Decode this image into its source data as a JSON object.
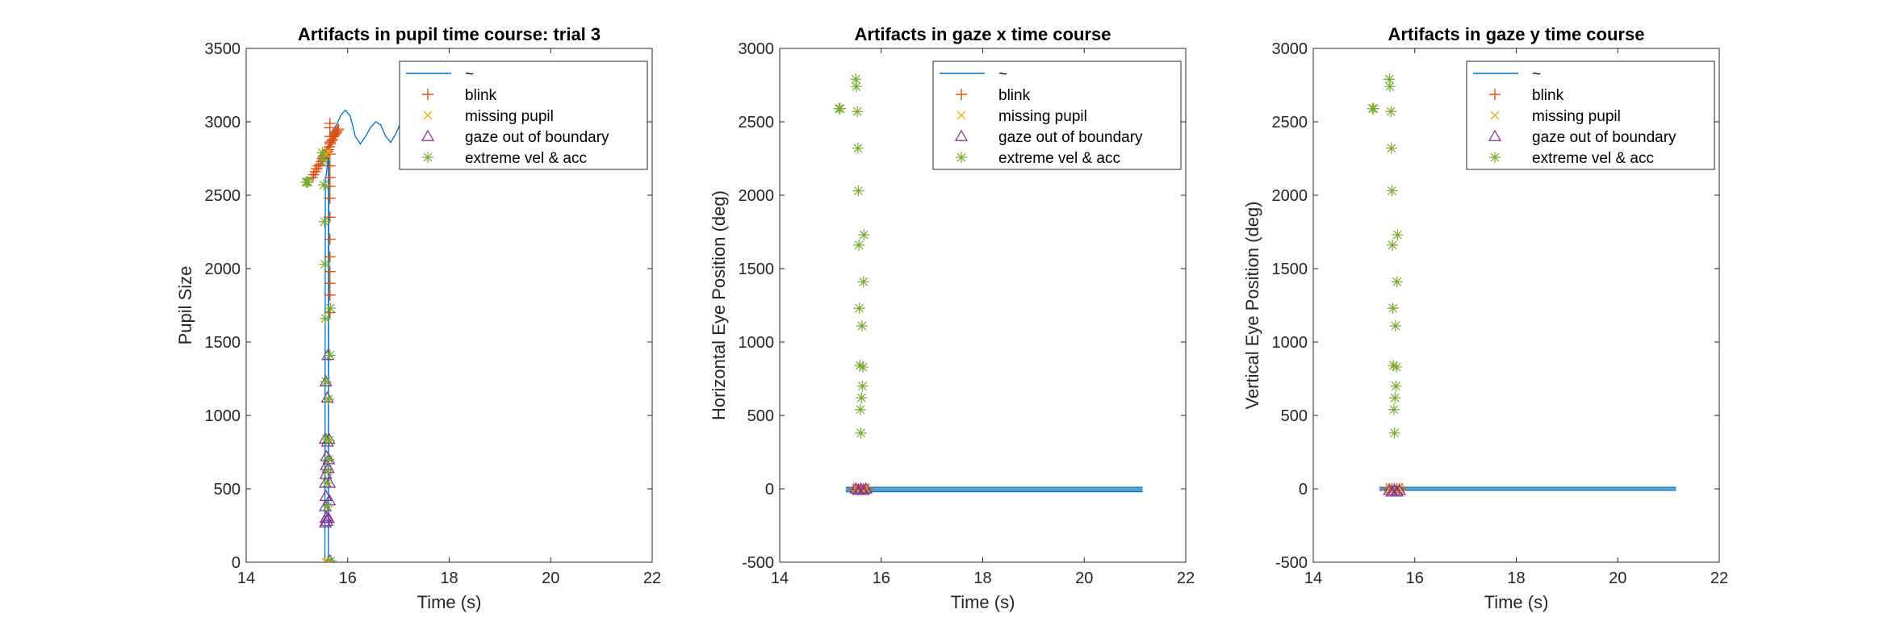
{
  "figure": {
    "colors": {
      "line": "#0072BD",
      "blink": "#D95319",
      "missing": "#EDB120",
      "boundary": "#7E2F8E",
      "extreme": "#77AC30"
    }
  },
  "legend_entries": [
    "~",
    "blink",
    "missing pupil",
    "gaze out of boundary",
    "extreme vel & acc"
  ],
  "chart_data": [
    {
      "type": "line",
      "title": "Artifacts in pupil time course: trial 3",
      "xlabel": "Time (s)",
      "ylabel": "Pupil Size",
      "xlim": [
        14,
        22
      ],
      "ylim": [
        0,
        3500
      ],
      "xticks": [
        14,
        16,
        18,
        20,
        22
      ],
      "yticks": [
        0,
        500,
        1000,
        1500,
        2000,
        2500,
        3000,
        3500
      ],
      "legend_position": "top-right",
      "grid": false,
      "series": [
        {
          "name": "~",
          "kind": "line",
          "x": [
            15.55,
            15.56,
            15.58,
            15.6,
            15.61,
            15.62,
            15.62,
            15.63,
            15.64,
            15.65,
            15.68,
            15.72,
            15.78,
            15.86,
            15.95,
            16.05,
            16.15,
            16.25,
            16.35,
            16.45,
            16.55,
            16.65,
            16.75,
            16.85,
            16.95,
            17.05,
            17.15,
            17.25,
            17.35,
            17.45,
            17.55,
            17.65,
            17.75,
            17.85
          ],
          "y": [
            0,
            2600,
            2650,
            2700,
            2750,
            2800,
            0,
            2850,
            2880,
            2900,
            2930,
            2950,
            2980,
            3040,
            3080,
            3040,
            2900,
            2850,
            2900,
            2960,
            3000,
            2980,
            2900,
            2860,
            2920,
            3000,
            3080,
            3200,
            3160,
            3060,
            2960,
            2900,
            2920,
            2950
          ]
        },
        {
          "name": "blink",
          "kind": "plus",
          "x": [
            15.3,
            15.33,
            15.36,
            15.39,
            15.42,
            15.45,
            15.48,
            15.5,
            15.52,
            15.54,
            15.56,
            15.58,
            15.6,
            15.62,
            15.64,
            15.66,
            15.68,
            15.7,
            15.72,
            15.74,
            15.76,
            15.78,
            15.8,
            15.82,
            15.65,
            15.65,
            15.65,
            15.65,
            15.65,
            15.65,
            15.65,
            15.65,
            15.65,
            15.65,
            15.65,
            15.65,
            15.65,
            15.65,
            15.65,
            15.65
          ],
          "y": [
            2620,
            2640,
            2660,
            2680,
            2700,
            2710,
            2730,
            2750,
            2760,
            2770,
            2780,
            2790,
            2800,
            2810,
            2830,
            2850,
            2870,
            2880,
            2900,
            2910,
            2920,
            2930,
            2940,
            2950,
            2990,
            2960,
            2900,
            2860,
            2780,
            2700,
            2620,
            2560,
            2480,
            2350,
            2200,
            2080,
            1980,
            1900,
            1820,
            1700
          ]
        },
        {
          "name": "missing pupil",
          "kind": "x",
          "x": [
            15.57,
            15.6,
            15.63,
            15.58,
            15.61
          ],
          "y": [
            0,
            0,
            0,
            2780,
            2800
          ]
        },
        {
          "name": "gaze out of boundary",
          "kind": "triangle",
          "x": [
            15.56,
            15.56,
            15.56,
            15.56,
            15.57,
            15.57,
            15.57,
            15.57,
            15.58,
            15.58,
            15.59,
            15.59,
            15.6,
            15.6,
            15.61,
            15.62,
            15.62,
            15.63,
            15.63,
            15.64,
            15.64,
            15.65
          ],
          "y": [
            270,
            380,
            540,
            840,
            1230,
            300,
            450,
            600,
            720,
            660,
            280,
            310,
            820,
            1120,
            1410,
            300,
            640,
            700,
            840,
            420,
            540,
            10
          ]
        },
        {
          "name": "extreme vel & acc",
          "kind": "star",
          "x": [
            15.18,
            15.2,
            15.22,
            15.5,
            15.52,
            15.53,
            15.54,
            15.55,
            15.56,
            15.57,
            15.58,
            15.59,
            15.6,
            15.61,
            15.62,
            15.63,
            15.64,
            15.65,
            15.66,
            15.67
          ],
          "y": [
            2590,
            2590,
            2590,
            2790,
            2740,
            2570,
            2320,
            2030,
            1660,
            1230,
            840,
            540,
            380,
            620,
            1110,
            700,
            830,
            1410,
            1730,
            10
          ]
        }
      ]
    },
    {
      "type": "line",
      "title": "Artifacts in gaze x time course",
      "xlabel": "Time (s)",
      "ylabel": "Horizontal Eye Position (deg)",
      "xlim": [
        14,
        22
      ],
      "ylim": [
        -500,
        3000
      ],
      "xticks": [
        14,
        16,
        18,
        20,
        22
      ],
      "yticks": [
        -500,
        0,
        500,
        1000,
        1500,
        2000,
        2500,
        3000
      ],
      "legend_position": "top-right",
      "grid": false,
      "series": [
        {
          "name": "~",
          "kind": "hlines",
          "x_start": 15.3,
          "x_end": 21.15,
          "y": [
            10,
            0,
            -10,
            -20
          ]
        },
        {
          "name": "blink",
          "kind": "plus",
          "x": [
            15.45,
            15.5,
            15.55,
            15.6,
            15.65,
            15.7,
            15.75
          ],
          "y": [
            0,
            0,
            0,
            0,
            0,
            0,
            0
          ]
        },
        {
          "name": "missing pupil",
          "kind": "x",
          "x": [
            15.5,
            15.6,
            15.7
          ],
          "y": [
            0,
            0,
            0
          ]
        },
        {
          "name": "gaze out of boundary",
          "kind": "triangle",
          "x": [
            15.5,
            15.55,
            15.6,
            15.65,
            15.7
          ],
          "y": [
            0,
            -10,
            0,
            -10,
            0
          ]
        },
        {
          "name": "extreme vel & acc",
          "kind": "star",
          "x": [
            15.17,
            15.19,
            15.5,
            15.51,
            15.53,
            15.54,
            15.55,
            15.56,
            15.57,
            15.58,
            15.59,
            15.6,
            15.61,
            15.62,
            15.63,
            15.64,
            15.65,
            15.66
          ],
          "y": [
            2590,
            2590,
            2790,
            2740,
            2570,
            2320,
            2030,
            1660,
            1230,
            840,
            540,
            380,
            620,
            1110,
            700,
            830,
            1410,
            1730
          ]
        }
      ]
    },
    {
      "type": "line",
      "title": "Artifacts in gaze y time course",
      "xlabel": "Time (s)",
      "ylabel": "Vertical Eye Position (deg)",
      "xlim": [
        14,
        22
      ],
      "ylim": [
        -500,
        3000
      ],
      "xticks": [
        14,
        16,
        18,
        20,
        22
      ],
      "yticks": [
        -500,
        0,
        500,
        1000,
        1500,
        2000,
        2500,
        3000
      ],
      "legend_position": "top-right",
      "grid": false,
      "series": [
        {
          "name": "~",
          "kind": "hlines",
          "x_start": 15.3,
          "x_end": 21.15,
          "y": [
            10,
            0,
            -10
          ]
        },
        {
          "name": "blink",
          "kind": "plus",
          "x": [
            15.45,
            15.5,
            15.55,
            15.6,
            15.65,
            15.7,
            15.75
          ],
          "y": [
            0,
            0,
            0,
            0,
            0,
            0,
            0
          ]
        },
        {
          "name": "missing pupil",
          "kind": "x",
          "x": [
            15.5,
            15.6,
            15.7
          ],
          "y": [
            0,
            0,
            0
          ]
        },
        {
          "name": "gaze out of boundary",
          "kind": "triangle",
          "x": [
            15.5,
            15.55,
            15.6,
            15.65,
            15.7
          ],
          "y": [
            -10,
            -20,
            -10,
            -20,
            -10
          ]
        },
        {
          "name": "extreme vel & acc",
          "kind": "star",
          "x": [
            15.17,
            15.19,
            15.5,
            15.51,
            15.53,
            15.54,
            15.55,
            15.56,
            15.57,
            15.58,
            15.59,
            15.6,
            15.61,
            15.62,
            15.63,
            15.64,
            15.65,
            15.66
          ],
          "y": [
            2590,
            2590,
            2790,
            2740,
            2570,
            2320,
            2030,
            1660,
            1230,
            840,
            540,
            380,
            620,
            1110,
            700,
            830,
            1410,
            1730
          ]
        }
      ]
    }
  ]
}
